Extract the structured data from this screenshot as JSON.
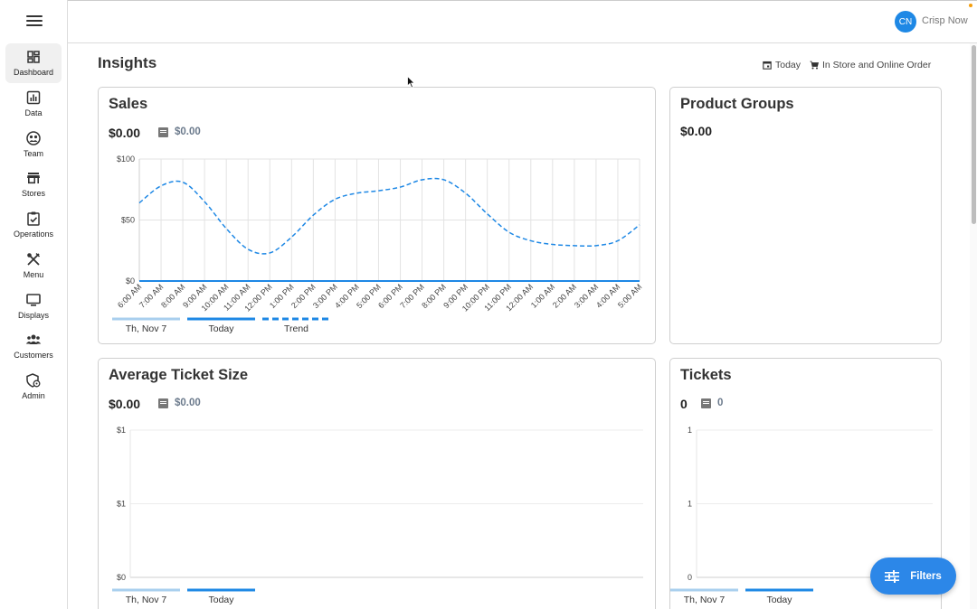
{
  "app": {
    "user_initials": "CN",
    "user_name": "Crisp Now",
    "accent_color": "#1e88e5"
  },
  "sidebar": {
    "items": [
      {
        "label": "Dashboard",
        "icon": "dashboard-icon",
        "active": true
      },
      {
        "label": "Data",
        "icon": "bar-chart-icon"
      },
      {
        "label": "Team",
        "icon": "team-icon"
      },
      {
        "label": "Stores",
        "icon": "store-icon"
      },
      {
        "label": "Operations",
        "icon": "clipboard-check-icon"
      },
      {
        "label": "Menu",
        "icon": "utensils-icon"
      },
      {
        "label": "Displays",
        "icon": "monitor-icon"
      },
      {
        "label": "Customers",
        "icon": "customers-icon"
      },
      {
        "label": "Admin",
        "icon": "admin-icon"
      }
    ]
  },
  "header": {
    "title": "Insights",
    "date_filter": "Today",
    "order_filter": "In Store and Online Order"
  },
  "sales": {
    "title": "Sales",
    "value": "$0.00",
    "compare_value": "$0.00",
    "legend": [
      "Th, Nov 7",
      "Today",
      "Trend"
    ]
  },
  "product_groups": {
    "title": "Product Groups",
    "value": "$0.00"
  },
  "avg_ticket": {
    "title": "Average Ticket Size",
    "value": "$0.00",
    "compare_value": "$0.00",
    "legend": [
      "Th, Nov 7",
      "Today"
    ]
  },
  "tickets": {
    "title": "Tickets",
    "value": "0",
    "compare_value": "0",
    "legend": [
      "Th, Nov 7",
      "Today"
    ]
  },
  "fab": {
    "label": "Filters"
  },
  "chart_data": [
    {
      "type": "line",
      "title": "Sales",
      "categories": [
        "6:00 AM",
        "7:00 AM",
        "8:00 AM",
        "9:00 AM",
        "10:00 AM",
        "11:00 AM",
        "12:00 PM",
        "1:00 PM",
        "2:00 PM",
        "3:00 PM",
        "4:00 PM",
        "5:00 PM",
        "6:00 PM",
        "7:00 PM",
        "8:00 PM",
        "9:00 PM",
        "10:00 PM",
        "11:00 PM",
        "12:00 AM",
        "1:00 AM",
        "2:00 AM",
        "3:00 AM",
        "4:00 AM",
        "5:00 AM"
      ],
      "y_ticks": [
        "$0",
        "$50",
        "$100"
      ],
      "ylim": [
        0,
        100
      ],
      "series": [
        {
          "name": "Th, Nov 7",
          "values": [
            0,
            0,
            0,
            0,
            0,
            0,
            0,
            0,
            0,
            0,
            0,
            0,
            0,
            0,
            0,
            0,
            0,
            0,
            0,
            0,
            0,
            0,
            0,
            0
          ],
          "color": "#a9cfee"
        },
        {
          "name": "Today",
          "values": [
            0,
            0,
            0,
            0,
            0,
            0,
            0,
            0,
            0,
            0,
            0,
            0,
            0,
            0,
            0,
            0,
            0,
            0,
            0,
            0,
            0,
            0,
            0,
            0
          ],
          "color": "#1e88e5"
        },
        {
          "name": "Trend",
          "values": [
            64,
            78,
            81,
            65,
            43,
            26,
            23,
            36,
            54,
            67,
            72,
            74,
            77,
            83,
            83,
            72,
            55,
            40,
            33,
            30,
            29,
            29,
            33,
            46
          ],
          "color": "#1e88e5",
          "dashed": true
        }
      ]
    },
    {
      "type": "line",
      "title": "Average Ticket Size",
      "y_ticks": [
        "$0",
        "$1",
        "$1"
      ],
      "ylim": [
        0,
        1
      ],
      "series": [
        {
          "name": "Th, Nov 7",
          "values": [],
          "color": "#a9cfee"
        },
        {
          "name": "Today",
          "values": [],
          "color": "#1e88e5"
        }
      ]
    },
    {
      "type": "line",
      "title": "Tickets",
      "y_ticks": [
        "0",
        "1",
        "1"
      ],
      "ylim": [
        0,
        1
      ],
      "series": [
        {
          "name": "Th, Nov 7",
          "values": [],
          "color": "#a9cfee"
        },
        {
          "name": "Today",
          "values": [],
          "color": "#1e88e5"
        }
      ]
    }
  ]
}
